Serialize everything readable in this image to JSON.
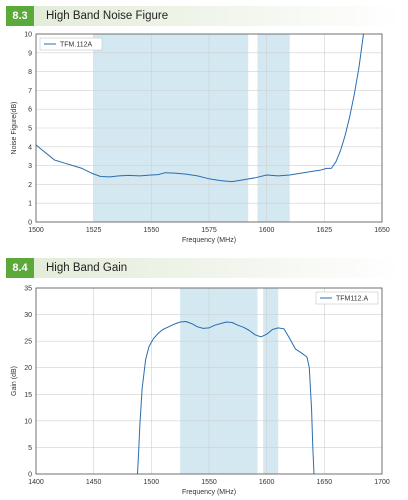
{
  "sections": [
    {
      "number": "8.3",
      "title": "High Band Noise Figure"
    },
    {
      "number": "8.4",
      "title": "High Band Gain"
    }
  ],
  "colors": {
    "series": "#2a6db0",
    "band": "#d3e8f0",
    "grid": "#d0d0d0",
    "header_accent": "#5aa93a"
  },
  "chart_data": [
    {
      "type": "line",
      "xlabel": "Frequency (MHz)",
      "ylabel": "Noise Figure(dB)",
      "xlim": [
        1500,
        1650
      ],
      "ylim": [
        0,
        10
      ],
      "xticks": [
        1500,
        1525,
        1550,
        1575,
        1600,
        1625,
        1650
      ],
      "yticks": [
        0,
        1,
        2,
        3,
        4,
        5,
        6,
        7,
        8,
        9,
        10
      ],
      "grid": true,
      "legend_position": "top-left",
      "shaded_bands": [
        [
          1525,
          1592
        ],
        [
          1596,
          1610
        ]
      ],
      "series": [
        {
          "name": "TFM.112A",
          "x": [
            1500,
            1502,
            1505,
            1508,
            1512,
            1516,
            1520,
            1524,
            1528,
            1532,
            1536,
            1540,
            1545,
            1550,
            1553,
            1556,
            1560,
            1565,
            1570,
            1575,
            1580,
            1585,
            1590,
            1595,
            1600,
            1605,
            1610,
            1615,
            1620,
            1623,
            1626,
            1628,
            1630,
            1632,
            1634,
            1636,
            1638,
            1640,
            1641,
            1642
          ],
          "y": [
            4.1,
            3.9,
            3.6,
            3.3,
            3.15,
            3.0,
            2.85,
            2.6,
            2.42,
            2.4,
            2.45,
            2.48,
            2.45,
            2.5,
            2.52,
            2.62,
            2.6,
            2.55,
            2.45,
            2.3,
            2.2,
            2.15,
            2.25,
            2.35,
            2.5,
            2.45,
            2.5,
            2.6,
            2.7,
            2.75,
            2.85,
            2.85,
            3.2,
            3.8,
            4.6,
            5.6,
            6.8,
            8.2,
            9.1,
            10.0
          ]
        }
      ]
    },
    {
      "type": "line",
      "xlabel": "Frequency (MHz)",
      "ylabel": "Gain (dB)",
      "xlim": [
        1400,
        1700
      ],
      "ylim": [
        0,
        35
      ],
      "xticks": [
        1400,
        1450,
        1500,
        1550,
        1600,
        1650,
        1700
      ],
      "yticks": [
        0,
        5,
        10,
        15,
        20,
        25,
        30,
        35
      ],
      "grid": true,
      "legend_position": "top-right",
      "shaded_bands": [
        [
          1525,
          1592
        ],
        [
          1597,
          1610
        ]
      ],
      "series": [
        {
          "name": "TFM112.A",
          "x": [
            1488,
            1489,
            1490,
            1492,
            1495,
            1498,
            1502,
            1506,
            1510,
            1515,
            1520,
            1525,
            1530,
            1535,
            1540,
            1545,
            1550,
            1555,
            1560,
            1565,
            1570,
            1575,
            1580,
            1585,
            1590,
            1595,
            1600,
            1605,
            1610,
            1615,
            1620,
            1625,
            1630,
            1635,
            1637,
            1639,
            1640,
            1641
          ],
          "y": [
            0,
            4,
            9,
            16,
            21.5,
            24,
            25.5,
            26.5,
            27.2,
            27.7,
            28.2,
            28.6,
            28.7,
            28.3,
            27.7,
            27.4,
            27.5,
            28.0,
            28.3,
            28.6,
            28.5,
            28.0,
            27.6,
            27.0,
            26.2,
            25.8,
            26.3,
            27.2,
            27.5,
            27.3,
            25.5,
            23.5,
            22.8,
            22.0,
            20,
            12,
            5,
            0
          ]
        }
      ]
    }
  ]
}
